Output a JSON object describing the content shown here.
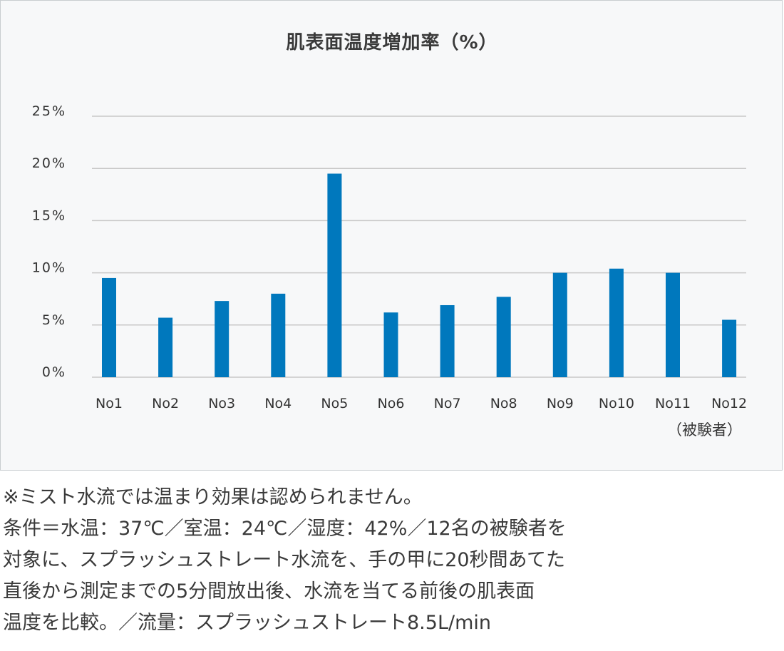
{
  "chart_data": {
    "type": "bar",
    "title": "肌表面温度増加率（%）",
    "categories": [
      "No1",
      "No2",
      "No3",
      "No4",
      "No5",
      "No6",
      "No7",
      "No8",
      "No9",
      "No10",
      "No11",
      "No12"
    ],
    "values": [
      9.5,
      5.7,
      7.3,
      8.0,
      19.5,
      6.2,
      6.9,
      7.7,
      10.0,
      10.4,
      10.0,
      5.5
    ],
    "y_ticks": [
      0,
      5,
      10,
      15,
      20,
      25
    ],
    "y_tick_labels": [
      "0%",
      "5%",
      "10%",
      "15%",
      "20%",
      "25%"
    ],
    "ylim": [
      0,
      25
    ],
    "xlabel": "（被験者）",
    "ylabel": "",
    "grid": true,
    "bar_color": "#0078bd",
    "grid_color": "#c8c8c8"
  },
  "footnote": {
    "lines": [
      "※ミスト水流では温まり効果は認められません。",
      "条件＝水温：37℃／室温：24℃／湿度：42%／12名の被験者を",
      "対象に、スプラッシュストレート水流を、手の甲に20秒間あてた",
      "直後から測定までの5分間放出後、水流を当てる前後の肌表面",
      "温度を比較。／流量：スプラッシュストレート8.5L/min"
    ]
  }
}
